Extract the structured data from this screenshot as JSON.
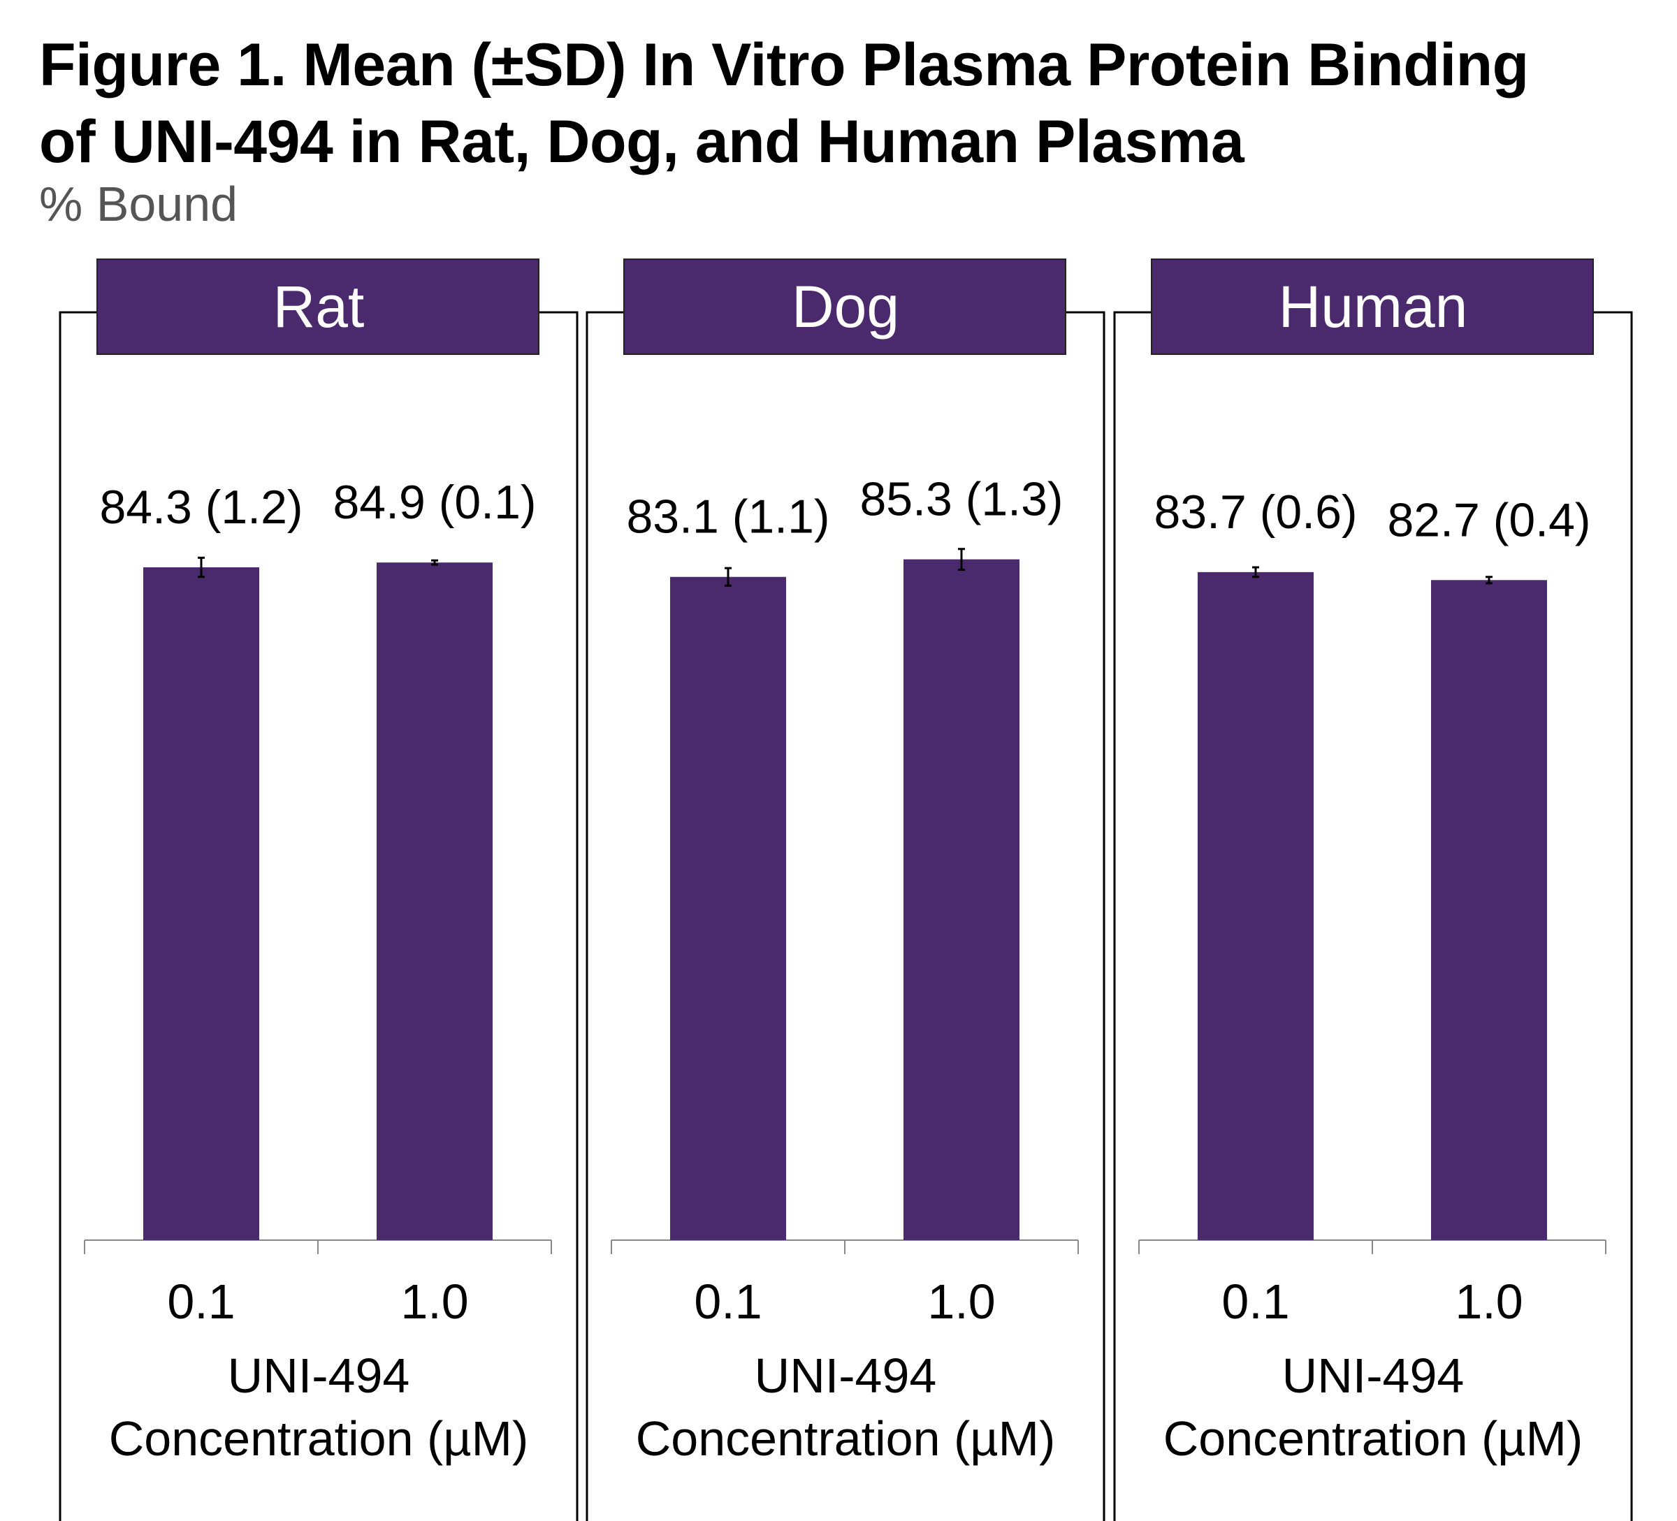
{
  "colors": {
    "bar": "#4a2a6c",
    "header_bg": "#4a2a6c",
    "header_text": "#ffffff",
    "panel_border": "#000000",
    "axis": "#888888",
    "subtitle": "#555555"
  },
  "chart_data": {
    "type": "bar",
    "title_line1": "Figure 1. Mean (±SD) In Vitro Plasma Protein Binding",
    "title_line2": "of UNI-494 in Rat, Dog, and Human Plasma",
    "ylabel": "% Bound",
    "ylim": [
      0,
      100
    ],
    "xlabel_line1": "UNI-494",
    "xlabel_line2": "Concentration (µM)",
    "categories": [
      "0.1",
      "1.0"
    ],
    "panels": [
      {
        "name": "Rat",
        "values": [
          84.3,
          84.9
        ],
        "sd": [
          1.2,
          0.1
        ],
        "labels": [
          "84.3 (1.2)",
          "84.9 (0.1)"
        ]
      },
      {
        "name": "Dog",
        "values": [
          83.1,
          85.3
        ],
        "sd": [
          1.1,
          1.3
        ],
        "labels": [
          "83.1 (1.1)",
          "85.3 (1.3)"
        ]
      },
      {
        "name": "Human",
        "values": [
          83.7,
          82.7
        ],
        "sd": [
          0.6,
          0.4
        ],
        "labels": [
          "83.7 (0.6)",
          "82.7 (0.4)"
        ]
      }
    ]
  }
}
